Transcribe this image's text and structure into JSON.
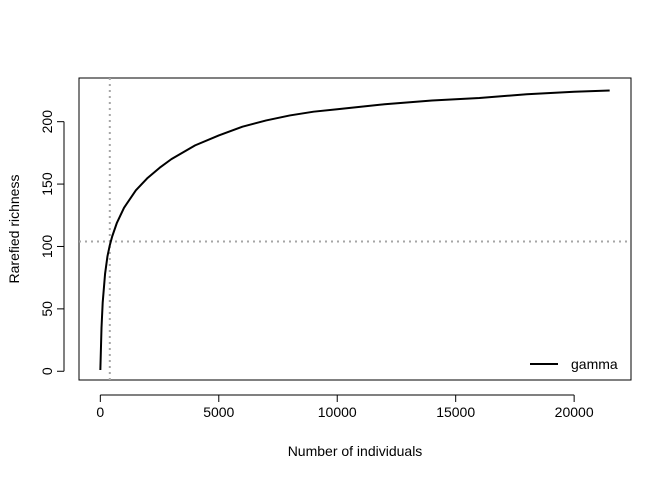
{
  "chart_data": {
    "type": "line",
    "title": "",
    "xlabel": "Number of individuals",
    "ylabel": "Rarefied richness",
    "xlim": [
      -900,
      22400
    ],
    "ylim": [
      -7,
      235
    ],
    "x_ticks": [
      0,
      5000,
      10000,
      15000,
      20000
    ],
    "y_ticks": [
      0,
      50,
      100,
      150,
      200
    ],
    "series": [
      {
        "name": "gamma",
        "color": "#000000",
        "x": [
          1,
          50,
          100,
          200,
          300,
          400,
          500,
          700,
          1000,
          1500,
          2000,
          2500,
          3000,
          4000,
          5000,
          6000,
          7000,
          8000,
          9000,
          10000,
          12000,
          14000,
          16000,
          18000,
          20000,
          21500
        ],
        "y": [
          1,
          35,
          55,
          78,
          92,
          101,
          108,
          119,
          131,
          145,
          155,
          163,
          170,
          181,
          189,
          196,
          201,
          205,
          208,
          210,
          214,
          217,
          219,
          222,
          224,
          225
        ]
      }
    ],
    "reference_lines": {
      "vertical_x": 400,
      "horizontal_y": 104,
      "color": "#a6a6a6",
      "style": "dotted"
    },
    "legend": {
      "position": "bottom-right",
      "entries": [
        "gamma"
      ]
    },
    "grid": false
  }
}
